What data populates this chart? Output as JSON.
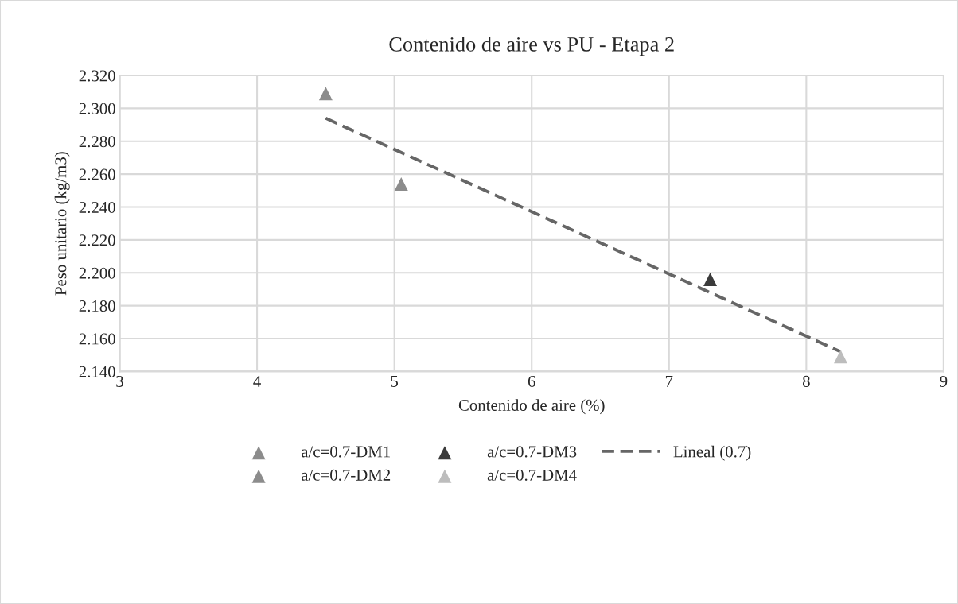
{
  "chart_data": {
    "type": "scatter",
    "title": "Contenido de aire vs PU - Etapa 2",
    "xlabel": "Contenido de aire (%)",
    "ylabel": "Peso unitario (kg/m3)",
    "marker": "triangle",
    "grid": true,
    "legend": "bottom",
    "xlim": [
      3,
      9
    ],
    "xticks": [
      3,
      4,
      5,
      6,
      7,
      8,
      9
    ],
    "ylim": [
      2.14,
      2.32
    ],
    "yticks": [
      {
        "value": 2.14,
        "label": "2.140"
      },
      {
        "value": 2.16,
        "label": "2.160"
      },
      {
        "value": 2.18,
        "label": "2.180"
      },
      {
        "value": 2.2,
        "label": "2.200"
      },
      {
        "value": 2.22,
        "label": "2.220"
      },
      {
        "value": 2.24,
        "label": "2.240"
      },
      {
        "value": 2.26,
        "label": "2.260"
      },
      {
        "value": 2.28,
        "label": "2.280"
      },
      {
        "value": 2.3,
        "label": "2.300"
      },
      {
        "value": 2.32,
        "label": "2.320"
      }
    ],
    "series": [
      {
        "name": "a/c=0.7-DM1",
        "color": "#8c8c8c",
        "x": [
          4.5
        ],
        "values": [
          2.309
        ]
      },
      {
        "name": "a/c=0.7-DM2",
        "color": "#8c8c8c",
        "x": [
          5.05
        ],
        "values": [
          2.254
        ]
      },
      {
        "name": "a/c=0.7-DM3",
        "color": "#3b3b3b",
        "x": [
          7.3
        ],
        "values": [
          2.196
        ]
      },
      {
        "name": "a/c=0.7-DM4",
        "color": "#bdbdbd",
        "x": [
          8.25
        ],
        "values": [
          2.149
        ]
      },
      {
        "name": "Lineal (0.7)",
        "type": "line",
        "line_style": "dashed",
        "marker": "none",
        "color": "#666666",
        "x": [
          4.5,
          8.25
        ],
        "values": [
          2.294,
          2.152
        ]
      }
    ]
  }
}
